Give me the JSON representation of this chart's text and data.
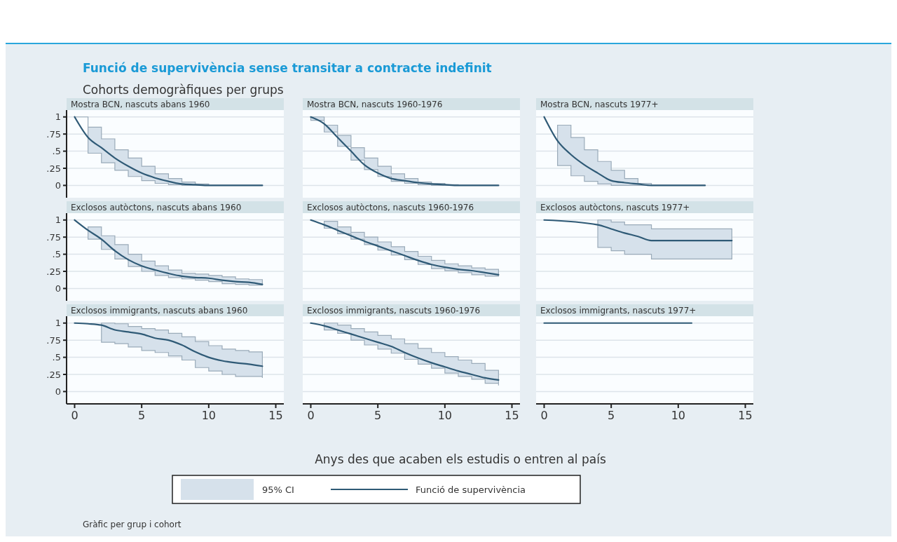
{
  "chart_data": [
    {
      "type": "other",
      "title": "Funció de supervivència sense transitar a contracte indefinit",
      "subtitle": "Cohorts demogràfiques per grups",
      "annotations": [
        "Gràfic per grup i cohort"
      ]
    },
    {
      "type": "line",
      "title": "Mostra BCN, nascuts abans 1960",
      "x": [
        0,
        1,
        2,
        3,
        4,
        5,
        6,
        7,
        8,
        9,
        10,
        11,
        12,
        13,
        14
      ],
      "xlim": [
        -0.6,
        15.6
      ],
      "ylim": [
        -0.18,
        1.1
      ],
      "yticks": [
        {
          "value": 0,
          "label": "0"
        },
        {
          "value": 0.25,
          "label": ".25"
        },
        {
          "value": 0.5,
          "label": ".5"
        },
        {
          "value": 0.75,
          "label": ".75"
        },
        {
          "value": 1,
          "label": "1"
        }
      ],
      "grid": "y",
      "tick_labels": "y",
      "series": [
        {
          "color": "#2f5a76",
          "values": [
            1,
            0.7,
            0.55,
            0.4,
            0.28,
            0.18,
            0.11,
            0.06,
            0.02,
            0.01,
            0,
            0,
            0,
            0,
            0
          ],
          "lower": [
            1,
            0.47,
            0.33,
            0.22,
            0.13,
            0.07,
            0.03,
            0.01,
            0,
            0,
            0,
            0,
            0,
            0,
            0
          ],
          "upper": [
            1,
            0.85,
            0.68,
            0.52,
            0.4,
            0.28,
            0.17,
            0.1,
            0.05,
            0.02,
            0,
            0,
            0,
            0,
            0
          ]
        }
      ]
    },
    {
      "type": "line",
      "title": "Mostra BCN, nascuts 1960-1976",
      "x": [
        0,
        1,
        2,
        3,
        4,
        5,
        6,
        7,
        8,
        9,
        10,
        11,
        12,
        13,
        14
      ],
      "xlim": [
        -0.6,
        15.6
      ],
      "ylim": [
        -0.18,
        1.1
      ],
      "yticks": [
        0,
        0.25,
        0.5,
        0.75,
        1
      ],
      "grid": "y",
      "tick_labels": false,
      "series": [
        {
          "color": "#2f5a76",
          "values": [
            1,
            0.9,
            0.7,
            0.5,
            0.3,
            0.18,
            0.1,
            0.07,
            0.04,
            0.02,
            0.01,
            0,
            0,
            0,
            0
          ],
          "lower": [
            0.95,
            0.78,
            0.57,
            0.37,
            0.23,
            0.13,
            0.06,
            0.03,
            0.01,
            0,
            0,
            0,
            0,
            0,
            0
          ],
          "upper": [
            1,
            0.88,
            0.73,
            0.55,
            0.4,
            0.28,
            0.17,
            0.1,
            0.05,
            0.03,
            0.01,
            0,
            0,
            0,
            0
          ]
        }
      ]
    },
    {
      "type": "line",
      "title": "Mostra BCN, nascuts 1977+",
      "x": [
        0,
        1,
        2,
        3,
        4,
        5,
        6,
        7,
        8,
        9,
        10,
        11,
        12
      ],
      "xlim": [
        -0.6,
        15.6
      ],
      "ylim": [
        -0.18,
        1.1
      ],
      "yticks": [
        0,
        0.25,
        0.5,
        0.75,
        1
      ],
      "grid": "y",
      "tick_labels": false,
      "series": [
        {
          "color": "#2f5a76",
          "values": [
            1,
            0.65,
            0.45,
            0.3,
            0.18,
            0.07,
            0.04,
            0.02,
            0,
            0,
            0,
            0,
            0
          ],
          "lower": [
            null,
            0.29,
            0.14,
            0.06,
            0.02,
            0,
            0,
            0,
            0,
            0,
            0,
            0,
            0
          ],
          "upper": [
            null,
            0.88,
            0.7,
            0.52,
            0.35,
            0.22,
            0.1,
            0.03,
            0,
            0,
            0,
            0,
            0
          ]
        }
      ]
    },
    {
      "type": "line",
      "title": "Exclosos autòctons, nascuts abans 1960",
      "x": [
        0,
        1,
        2,
        3,
        4,
        5,
        6,
        7,
        8,
        9,
        10,
        11,
        12,
        13,
        14
      ],
      "xlim": [
        -0.6,
        15.6
      ],
      "ylim": [
        -0.18,
        1.1
      ],
      "yticks": [
        {
          "value": 0,
          "label": "0"
        },
        {
          "value": 0.25,
          "label": ".25"
        },
        {
          "value": 0.5,
          "label": ".5"
        },
        {
          "value": 0.75,
          "label": ".75"
        },
        {
          "value": 1,
          "label": "1"
        }
      ],
      "grid": "y",
      "tick_labels": "y",
      "series": [
        {
          "color": "#2f5a76",
          "values": [
            1,
            0.85,
            0.72,
            0.55,
            0.42,
            0.33,
            0.27,
            0.22,
            0.18,
            0.16,
            0.15,
            0.12,
            0.1,
            0.09,
            0.06
          ],
          "lower": [
            null,
            0.72,
            0.57,
            0.43,
            0.32,
            0.25,
            0.19,
            0.16,
            0.14,
            0.12,
            0.1,
            0.07,
            0.06,
            0.05,
            0.05
          ],
          "upper": [
            null,
            0.9,
            0.77,
            0.64,
            0.5,
            0.4,
            0.33,
            0.27,
            0.22,
            0.21,
            0.19,
            0.17,
            0.14,
            0.13,
            0.13
          ]
        }
      ]
    },
    {
      "type": "line",
      "title": "Exclosos autòctons, nascuts 1960-1976",
      "x": [
        0,
        1,
        2,
        3,
        4,
        5,
        6,
        7,
        8,
        9,
        10,
        11,
        12,
        13,
        14
      ],
      "xlim": [
        -0.6,
        15.6
      ],
      "ylim": [
        -0.18,
        1.1
      ],
      "yticks": [
        0,
        0.25,
        0.5,
        0.75,
        1
      ],
      "grid": "y",
      "tick_labels": false,
      "series": [
        {
          "color": "#2f5a76",
          "values": [
            1,
            0.93,
            0.85,
            0.77,
            0.69,
            0.62,
            0.55,
            0.48,
            0.41,
            0.35,
            0.31,
            0.28,
            0.26,
            0.23,
            0.2
          ],
          "lower": [
            null,
            0.88,
            0.8,
            0.72,
            0.64,
            0.56,
            0.49,
            0.42,
            0.35,
            0.29,
            0.26,
            0.23,
            0.2,
            0.18,
            0.18
          ],
          "upper": [
            null,
            0.98,
            0.9,
            0.82,
            0.75,
            0.68,
            0.61,
            0.54,
            0.47,
            0.41,
            0.36,
            0.33,
            0.3,
            0.28,
            0.28
          ]
        }
      ]
    },
    {
      "type": "line",
      "title": "Exclosos autòctons, nascuts 1977+",
      "x": [
        0,
        4,
        5,
        6,
        7,
        8,
        14
      ],
      "xlim": [
        -0.6,
        15.6
      ],
      "ylim": [
        -0.18,
        1.1
      ],
      "yticks": [
        0,
        0.25,
        0.5,
        0.75,
        1
      ],
      "grid": "y",
      "tick_labels": false,
      "series": [
        {
          "color": "#2f5a76",
          "values": [
            1,
            0.93,
            0.87,
            0.81,
            0.76,
            0.7,
            0.7
          ],
          "lower": [
            null,
            0.6,
            0.55,
            0.5,
            0.5,
            0.43,
            0.43
          ],
          "upper": [
            null,
            1,
            0.97,
            0.93,
            0.93,
            0.87,
            0.87
          ]
        }
      ]
    },
    {
      "type": "line",
      "title": "Exclosos immigrants, nascuts abans 1960",
      "x": [
        0,
        1,
        2,
        3,
        4,
        5,
        6,
        7,
        8,
        9,
        10,
        11,
        12,
        13,
        14
      ],
      "xlim": [
        -0.6,
        15.6
      ],
      "xticks": [
        0,
        5,
        10,
        15
      ],
      "ylim": [
        -0.18,
        1.1
      ],
      "yticks": [
        {
          "value": 0,
          "label": "0"
        },
        {
          "value": 0.25,
          "label": ".25"
        },
        {
          "value": 0.5,
          "label": ".5"
        },
        {
          "value": 0.75,
          "label": ".75"
        },
        {
          "value": 1,
          "label": "1"
        }
      ],
      "grid": "y",
      "series": [
        {
          "color": "#2f5a76",
          "values": [
            1,
            0.99,
            0.97,
            0.9,
            0.87,
            0.84,
            0.78,
            0.75,
            0.68,
            0.58,
            0.5,
            0.45,
            0.42,
            0.4,
            0.37
          ],
          "lower": [
            null,
            null,
            0.72,
            0.7,
            0.65,
            0.6,
            0.57,
            0.52,
            0.46,
            0.35,
            0.3,
            0.25,
            0.22,
            0.22,
            0.2
          ],
          "upper": [
            null,
            null,
            1,
            0.99,
            0.95,
            0.92,
            0.9,
            0.85,
            0.8,
            0.73,
            0.67,
            0.62,
            0.6,
            0.58,
            0.58
          ]
        }
      ]
    },
    {
      "type": "line",
      "title": "Exclosos immigrants, nascuts 1960-1976",
      "x": [
        0,
        1,
        2,
        3,
        4,
        5,
        6,
        7,
        8,
        9,
        10,
        11,
        12,
        13,
        14
      ],
      "xlim": [
        -0.6,
        15.6
      ],
      "xticks": [
        0,
        5,
        10,
        15
      ],
      "ylim": [
        -0.18,
        1.1
      ],
      "yticks": [
        0,
        0.25,
        0.5,
        0.75,
        1
      ],
      "grid": "y",
      "tick_labels": "x",
      "xlabel": "Anys des que acaben els estudis o entren al país",
      "legend": "bottom",
      "annotations": [
        "95% CI"
      ],
      "series": [
        {
          "name": "Funció de supervivència",
          "color": "#2f5a76",
          "values": [
            1,
            0.96,
            0.9,
            0.84,
            0.78,
            0.72,
            0.66,
            0.57,
            0.49,
            0.42,
            0.36,
            0.3,
            0.25,
            0.2,
            0.17
          ],
          "lower": [
            null,
            0.9,
            0.85,
            0.75,
            0.68,
            0.62,
            0.56,
            0.47,
            0.4,
            0.34,
            0.27,
            0.22,
            0.18,
            0.12,
            0.09
          ],
          "upper": [
            null,
            1,
            0.97,
            0.92,
            0.87,
            0.82,
            0.77,
            0.7,
            0.63,
            0.57,
            0.51,
            0.46,
            0.41,
            0.31,
            0.3
          ]
        }
      ]
    },
    {
      "type": "line",
      "title": "Exclosos immigrants, nascuts 1977+",
      "x": [
        0,
        11
      ],
      "xlim": [
        -0.6,
        15.6
      ],
      "xticks": [
        0,
        5,
        10,
        15
      ],
      "ylim": [
        -0.18,
        1.1
      ],
      "yticks": [
        0,
        0.25,
        0.5,
        0.75,
        1
      ],
      "grid": "y",
      "tick_labels": "x",
      "series": [
        {
          "color": "#2f5a76",
          "values": [
            1,
            1
          ]
        }
      ]
    }
  ]
}
